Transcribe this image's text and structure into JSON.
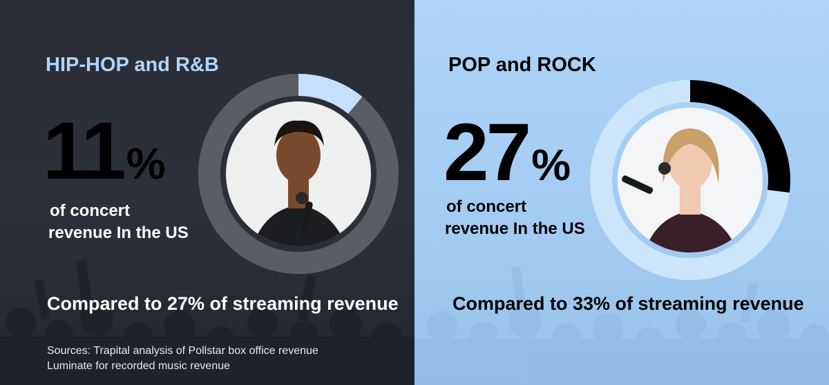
{
  "chart_data": [
    {
      "type": "pie",
      "title": "HIP-HOP and R&B",
      "values": [
        11
      ],
      "value_suffix": "%",
      "caption_lines": [
        "of concert",
        "revenue In the US"
      ],
      "comparison": "Compared to 27% of streaming revenue",
      "colors": {
        "highlight": "#c4e0fd",
        "remainder": "#5a5d63",
        "title": "#aed5ff"
      }
    },
    {
      "type": "pie",
      "title": "POP and ROCK",
      "values": [
        27
      ],
      "value_suffix": "%",
      "caption_lines": [
        "of concert",
        "revenue In the US"
      ],
      "comparison": "Compared to 33% of streaming revenue",
      "colors": {
        "highlight": "#000000",
        "remainder": "#cde5fb",
        "title": "#000000"
      }
    }
  ],
  "sources": [
    "Sources: Trapital analysis of Pollstar box office revenue",
    "Luminate for recorded music revenue"
  ],
  "images": {
    "left_photo": "performer-photo",
    "right_photo": "performer-photo"
  }
}
